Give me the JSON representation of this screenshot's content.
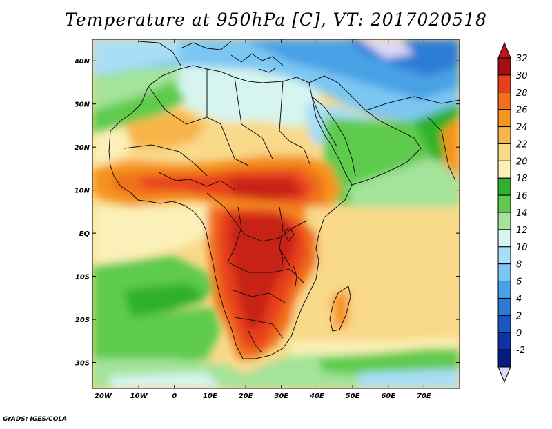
{
  "title": "Temperature at 950hPa [C], VT: 2017020518",
  "footer": "GrADS: IGES/COLA",
  "map": {
    "lon_range": [
      -23,
      80
    ],
    "lat_range": [
      -36,
      45
    ],
    "lat_ticks": [
      {
        "value": 40,
        "label": "40N"
      },
      {
        "value": 30,
        "label": "30N"
      },
      {
        "value": 20,
        "label": "20N"
      },
      {
        "value": 10,
        "label": "10N"
      },
      {
        "value": 0,
        "label": "EQ"
      },
      {
        "value": -10,
        "label": "10S"
      },
      {
        "value": -20,
        "label": "20S"
      },
      {
        "value": -30,
        "label": "30S"
      }
    ],
    "lon_ticks": [
      {
        "value": -20,
        "label": "20W"
      },
      {
        "value": -10,
        "label": "10W"
      },
      {
        "value": 0,
        "label": "0"
      },
      {
        "value": 10,
        "label": "10E"
      },
      {
        "value": 20,
        "label": "20E"
      },
      {
        "value": 30,
        "label": "30E"
      },
      {
        "value": 40,
        "label": "40E"
      },
      {
        "value": 50,
        "label": "50E"
      },
      {
        "value": 60,
        "label": "60E"
      },
      {
        "value": 70,
        "label": "70E"
      }
    ]
  },
  "colorbar": {
    "levels": [
      {
        "label": "32",
        "color": "#a50f0f"
      },
      {
        "label": "30",
        "color": "#e8401c"
      },
      {
        "label": "28",
        "color": "#f0701e"
      },
      {
        "label": "26",
        "color": "#f5941e"
      },
      {
        "label": "24",
        "color": "#f7b54a"
      },
      {
        "label": "22",
        "color": "#f9d98a"
      },
      {
        "label": "20",
        "color": "#fbf1b8"
      },
      {
        "label": "18",
        "color": "#2fb12c"
      },
      {
        "label": "16",
        "color": "#5ecb4e"
      },
      {
        "label": "14",
        "color": "#a3e39a"
      },
      {
        "label": "12",
        "color": "#d6f5ef"
      },
      {
        "label": "10",
        "color": "#a9def7"
      },
      {
        "label": "8",
        "color": "#7cc6f3"
      },
      {
        "label": "6",
        "color": "#4aa1e6"
      },
      {
        "label": "4",
        "color": "#2a7bd6"
      },
      {
        "label": "2",
        "color": "#1b55c2"
      },
      {
        "label": "0",
        "color": "#0d33a5"
      },
      {
        "label": "-2",
        "color": "#071a7e"
      }
    ],
    "top_arrow_color": "#c1121b",
    "bottom_arrow_color": "#dcd8f5"
  }
}
